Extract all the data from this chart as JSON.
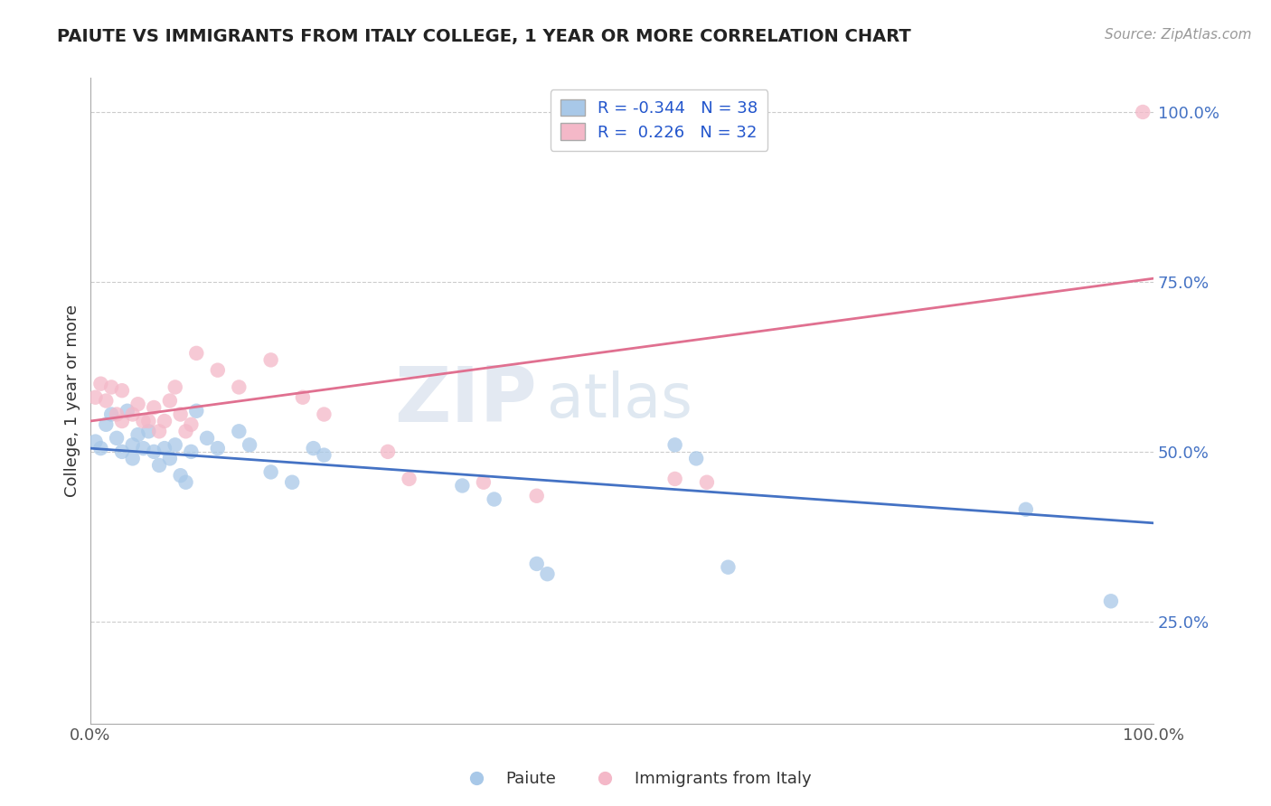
{
  "title": "PAIUTE VS IMMIGRANTS FROM ITALY COLLEGE, 1 YEAR OR MORE CORRELATION CHART",
  "source": "Source: ZipAtlas.com",
  "ylabel": "College, 1 year or more",
  "xlim": [
    0.0,
    1.0
  ],
  "ylim": [
    0.1,
    1.05
  ],
  "xticks": [
    0.0,
    1.0
  ],
  "xticklabels": [
    "0.0%",
    "100.0%"
  ],
  "ytick_positions": [
    0.25,
    0.5,
    0.75,
    1.0
  ],
  "yticklabels": [
    "25.0%",
    "50.0%",
    "75.0%",
    "100.0%"
  ],
  "legend_r_blue": "-0.344",
  "legend_n_blue": "38",
  "legend_r_pink": "0.226",
  "legend_n_pink": "32",
  "blue_color": "#a8c8e8",
  "pink_color": "#f4b8c8",
  "line_blue": "#4472c4",
  "line_pink": "#e07090",
  "watermark_zip": "ZIP",
  "watermark_atlas": "atlas",
  "blue_line_start": 0.505,
  "blue_line_end": 0.395,
  "pink_line_start": 0.545,
  "pink_line_end": 0.755,
  "blue_scatter_x": [
    0.005,
    0.01,
    0.015,
    0.02,
    0.025,
    0.03,
    0.035,
    0.04,
    0.04,
    0.045,
    0.05,
    0.055,
    0.06,
    0.065,
    0.07,
    0.075,
    0.08,
    0.085,
    0.09,
    0.095,
    0.1,
    0.11,
    0.12,
    0.14,
    0.15,
    0.17,
    0.19,
    0.21,
    0.22,
    0.35,
    0.38,
    0.42,
    0.43,
    0.55,
    0.57,
    0.6,
    0.88,
    0.96
  ],
  "blue_scatter_y": [
    0.515,
    0.505,
    0.54,
    0.555,
    0.52,
    0.5,
    0.56,
    0.51,
    0.49,
    0.525,
    0.505,
    0.53,
    0.5,
    0.48,
    0.505,
    0.49,
    0.51,
    0.465,
    0.455,
    0.5,
    0.56,
    0.52,
    0.505,
    0.53,
    0.51,
    0.47,
    0.455,
    0.505,
    0.495,
    0.45,
    0.43,
    0.335,
    0.32,
    0.51,
    0.49,
    0.33,
    0.415,
    0.28
  ],
  "pink_scatter_x": [
    0.005,
    0.01,
    0.015,
    0.02,
    0.025,
    0.03,
    0.03,
    0.04,
    0.045,
    0.05,
    0.055,
    0.06,
    0.065,
    0.07,
    0.075,
    0.08,
    0.085,
    0.09,
    0.095,
    0.1,
    0.12,
    0.14,
    0.17,
    0.2,
    0.22,
    0.28,
    0.3,
    0.37,
    0.42,
    0.55,
    0.58,
    0.99
  ],
  "pink_scatter_y": [
    0.58,
    0.6,
    0.575,
    0.595,
    0.555,
    0.545,
    0.59,
    0.555,
    0.57,
    0.545,
    0.545,
    0.565,
    0.53,
    0.545,
    0.575,
    0.595,
    0.555,
    0.53,
    0.54,
    0.645,
    0.62,
    0.595,
    0.635,
    0.58,
    0.555,
    0.5,
    0.46,
    0.455,
    0.435,
    0.46,
    0.455,
    1.0
  ],
  "grid_color": "#cccccc",
  "background_color": "#ffffff"
}
